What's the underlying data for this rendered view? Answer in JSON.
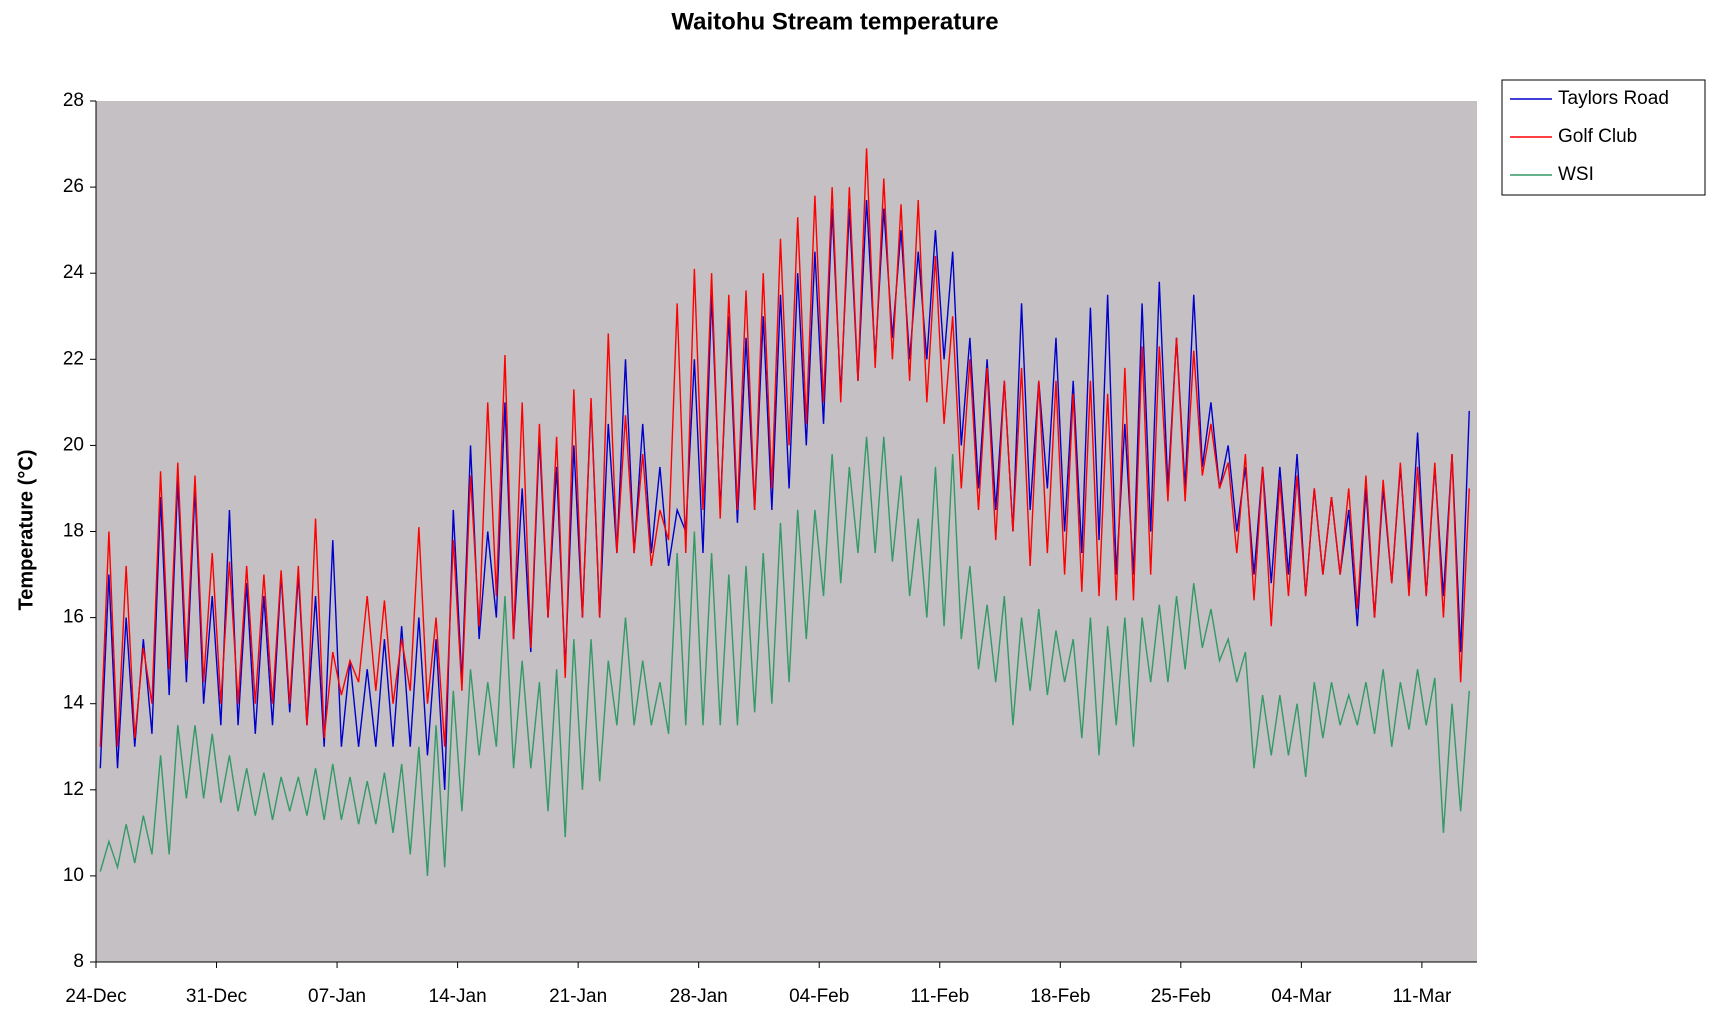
{
  "chart_data": {
    "type": "line",
    "title": "Waitohu Stream temperature",
    "ylabel": "Temperature (°C)",
    "x": [
      0.25,
      0.75,
      1.25,
      1.75,
      2.25,
      2.75,
      3.25,
      3.75,
      4.25,
      4.75,
      5.25,
      5.75,
      6.25,
      6.75,
      7.25,
      7.75,
      8.25,
      8.75,
      9.25,
      9.75,
      10.25,
      10.75,
      11.25,
      11.75,
      12.25,
      12.75,
      13.25,
      13.75,
      14.25,
      14.75,
      15.25,
      15.75,
      16.25,
      16.75,
      17.25,
      17.75,
      18.25,
      18.75,
      19.25,
      19.75,
      20.25,
      20.75,
      21.25,
      21.75,
      22.25,
      22.75,
      23.25,
      23.75,
      24.25,
      24.75,
      25.25,
      25.75,
      26.25,
      26.75,
      27.25,
      27.75,
      28.25,
      28.75,
      29.25,
      29.75,
      30.25,
      30.75,
      31.25,
      31.75,
      32.25,
      32.75,
      33.25,
      33.75,
      34.25,
      34.75,
      35.25,
      35.75,
      36.25,
      36.75,
      37.25,
      37.75,
      38.25,
      38.75,
      39.25,
      39.75,
      40.25,
      40.75,
      41.25,
      41.75,
      42.25,
      42.75,
      43.25,
      43.75,
      44.25,
      44.75,
      45.25,
      45.75,
      46.25,
      46.75,
      47.25,
      47.75,
      48.25,
      48.75,
      49.25,
      49.75,
      50.25,
      50.75,
      51.25,
      51.75,
      52.25,
      52.75,
      53.25,
      53.75,
      54.25,
      54.75,
      55.25,
      55.75,
      56.25,
      56.75,
      57.25,
      57.75,
      58.25,
      58.75,
      59.25,
      59.75,
      60.25,
      60.75,
      61.25,
      61.75,
      62.25,
      62.75,
      63.25,
      63.75,
      64.25,
      64.75,
      65.25,
      65.75,
      66.25,
      66.75,
      67.25,
      67.75,
      68.25,
      68.75,
      69.25,
      69.75,
      70.25,
      70.75,
      71.25,
      71.75,
      72.25,
      72.75,
      73.25,
      73.75,
      74.25,
      74.75,
      75.25,
      75.75,
      76.25,
      76.75,
      77.25,
      77.75,
      78.25,
      78.75,
      79.25,
      79.75
    ],
    "xlim": [
      0,
      80.2
    ],
    "xticks": [
      {
        "value": 0,
        "label": "24-Dec"
      },
      {
        "value": 7,
        "label": "31-Dec"
      },
      {
        "value": 14,
        "label": "07-Jan"
      },
      {
        "value": 21,
        "label": "14-Jan"
      },
      {
        "value": 28,
        "label": "21-Jan"
      },
      {
        "value": 35,
        "label": "28-Jan"
      },
      {
        "value": 42,
        "label": "04-Feb"
      },
      {
        "value": 49,
        "label": "11-Feb"
      },
      {
        "value": 56,
        "label": "18-Feb"
      },
      {
        "value": 63,
        "label": "25-Feb"
      },
      {
        "value": 70,
        "label": "04-Mar"
      },
      {
        "value": 77,
        "label": "11-Mar"
      }
    ],
    "ylim": [
      8,
      28
    ],
    "yticks": [
      8,
      10,
      12,
      14,
      16,
      18,
      20,
      22,
      24,
      26,
      28
    ],
    "legend": "right",
    "series": [
      {
        "name": "Taylors Road",
        "color": "#0000cc",
        "values": [
          12.5,
          17,
          12.5,
          16,
          13,
          15.5,
          13.3,
          18.8,
          14.2,
          19.2,
          14.5,
          19,
          14,
          16.5,
          13.5,
          18.5,
          13.5,
          16.8,
          13.3,
          16.5,
          13.5,
          17,
          13.8,
          17,
          13.5,
          16.5,
          13,
          17.8,
          13,
          15,
          13,
          14.8,
          13,
          15.5,
          13,
          15.8,
          13,
          16,
          12.8,
          15.5,
          12,
          18.5,
          14.5,
          20,
          15.5,
          18,
          16,
          21,
          15.5,
          19,
          15.2,
          20.2,
          16,
          19.5,
          14.8,
          20,
          16,
          21,
          16,
          20.5,
          17.5,
          22,
          17.5,
          20.5,
          17.5,
          19.5,
          17.2,
          18.5,
          18,
          22,
          17.5,
          23.5,
          18.5,
          23,
          18.2,
          22.5,
          18.5,
          23,
          18.5,
          23.5,
          19,
          24,
          20,
          24.5,
          20.5,
          25.5,
          21.2,
          25.5,
          21.5,
          25.7,
          22,
          25.5,
          22.5,
          25,
          22,
          24.5,
          22,
          25,
          22,
          24.5,
          20,
          22.5,
          19,
          22,
          18.5,
          21.5,
          18,
          23.3,
          18.5,
          21.5,
          19,
          22.5,
          18,
          21.5,
          17.5,
          23.2,
          17.8,
          23.5,
          17,
          20.5,
          17,
          23.3,
          18,
          23.8,
          19,
          22.5,
          19,
          23.5,
          19.5,
          21,
          19,
          20,
          18,
          19.5,
          17,
          19.5,
          16.8,
          19.5,
          17,
          19.8,
          16.5,
          19,
          17,
          18.8,
          17,
          18.5,
          15.8,
          19,
          16,
          19,
          16.8,
          19.5,
          16.8,
          20.3,
          16.5,
          19.5,
          16.5,
          19.8,
          15.2,
          20.8
        ]
      },
      {
        "name": "Golf Club",
        "color": "#ff0000",
        "values": [
          13,
          18,
          13,
          17.2,
          13.2,
          15.3,
          14,
          19.4,
          14.8,
          19.6,
          15,
          19.3,
          14.5,
          17.5,
          14,
          17.3,
          14,
          17.2,
          14,
          17,
          14,
          17.1,
          14,
          17.2,
          13.5,
          18.3,
          13.2,
          15.2,
          14.2,
          15,
          14.5,
          16.5,
          14.3,
          16.4,
          14,
          15.5,
          14.3,
          18.1,
          14,
          16,
          13,
          17.8,
          14.3,
          19.3,
          15.8,
          21,
          16.5,
          22.1,
          15.5,
          21,
          15.3,
          20.5,
          16,
          20.2,
          14.6,
          21.3,
          16,
          21.1,
          16,
          22.6,
          17.5,
          20.7,
          17.5,
          19.8,
          17.2,
          18.5,
          17.8,
          23.3,
          17.5,
          24.1,
          18.5,
          24,
          18.3,
          23.5,
          18.5,
          23.6,
          18.5,
          24,
          19,
          24.8,
          20,
          25.3,
          20.5,
          25.8,
          21,
          26,
          21,
          26,
          21.5,
          26.9,
          21.8,
          26.2,
          22,
          25.6,
          21.5,
          25.7,
          21,
          24.4,
          20.5,
          23,
          19,
          22,
          18.5,
          21.8,
          17.8,
          21.5,
          18,
          21.8,
          17.2,
          21.5,
          17.5,
          21.5,
          17,
          21.2,
          16.6,
          21.5,
          16.5,
          21.2,
          16.4,
          21.8,
          16.4,
          22.3,
          17,
          22.3,
          18.7,
          22.5,
          18.7,
          22.2,
          19.3,
          20.5,
          19,
          19.6,
          17.5,
          19.8,
          16.4,
          19.5,
          15.8,
          19.2,
          16.5,
          19.3,
          16.5,
          19,
          17,
          18.8,
          17,
          19,
          16.2,
          19.3,
          16,
          19.2,
          16.8,
          19.6,
          16.5,
          19.5,
          16.5,
          19.6,
          16,
          19.8,
          14.5,
          19
        ]
      },
      {
        "name": "WSI",
        "color": "#339966",
        "values": [
          10.1,
          10.8,
          10.2,
          11.2,
          10.3,
          11.4,
          10.5,
          12.8,
          10.5,
          13.5,
          11.8,
          13.5,
          11.8,
          13.3,
          11.7,
          12.8,
          11.5,
          12.5,
          11.4,
          12.4,
          11.3,
          12.3,
          11.5,
          12.3,
          11.4,
          12.5,
          11.3,
          12.6,
          11.3,
          12.3,
          11.2,
          12.2,
          11.2,
          12.4,
          11,
          12.6,
          10.5,
          13,
          10,
          13.5,
          10.2,
          14.3,
          11.5,
          14.8,
          12.8,
          14.5,
          13,
          16.5,
          12.5,
          15,
          12.5,
          14.5,
          11.5,
          14.8,
          10.9,
          15.5,
          12,
          15.5,
          12.2,
          15,
          13.5,
          16,
          13.5,
          15,
          13.5,
          14.5,
          13.3,
          17.5,
          13.5,
          18,
          13.5,
          17.5,
          13.5,
          17,
          13.5,
          17.2,
          13.8,
          17.5,
          14,
          18.2,
          14.5,
          18.5,
          15.5,
          18.5,
          16.5,
          19.8,
          16.8,
          19.5,
          17.5,
          20.2,
          17.5,
          20.2,
          17.3,
          19.3,
          16.5,
          18.3,
          16,
          19.5,
          15.8,
          19.8,
          15.5,
          17.2,
          14.8,
          16.3,
          14.5,
          16.5,
          13.5,
          16,
          14.3,
          16.2,
          14.2,
          15.7,
          14.5,
          15.5,
          13.2,
          16,
          12.8,
          15.8,
          13.5,
          16,
          13,
          16,
          14.5,
          16.3,
          14.5,
          16.5,
          14.8,
          16.8,
          15.3,
          16.2,
          15,
          15.5,
          14.5,
          15.2,
          12.5,
          14.2,
          12.8,
          14.2,
          12.8,
          14,
          12.3,
          14.5,
          13.2,
          14.5,
          13.5,
          14.2,
          13.5,
          14.5,
          13.3,
          14.8,
          13,
          14.5,
          13.4,
          14.8,
          13.5,
          14.6,
          11,
          14,
          11.5,
          14.3
        ]
      }
    ]
  }
}
